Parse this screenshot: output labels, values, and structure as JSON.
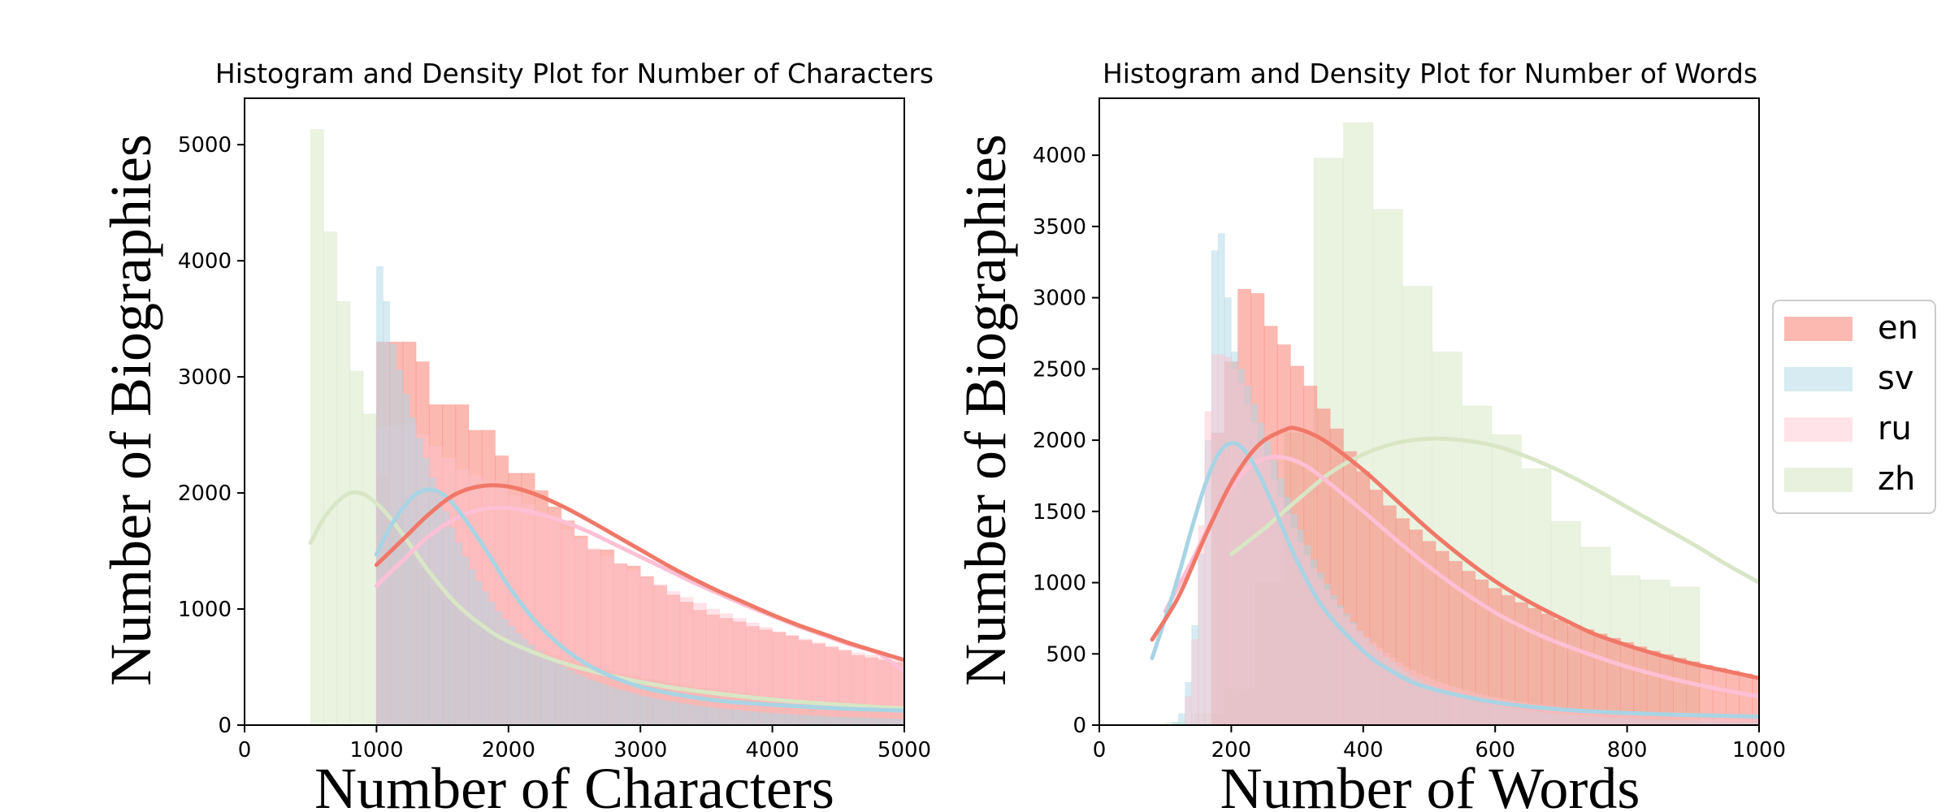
{
  "colors": {
    "en": "#fa8072",
    "sv": "#add8e6",
    "ru": "#ffc0cb",
    "zh": "#d9e7c6",
    "pink_en_overlay": "#ffb6c1"
  },
  "legend": {
    "placement": "right-center",
    "entries": [
      {
        "key": "en",
        "label": "en"
      },
      {
        "key": "sv",
        "label": "sv"
      },
      {
        "key": "ru",
        "label": "ru"
      },
      {
        "key": "zh",
        "label": "zh"
      }
    ]
  },
  "chart_data": [
    {
      "type": "bar",
      "title": "Histogram and Density Plot for Number of Characters",
      "xlabel": "Number of Characters",
      "ylabel": "Number of Biographies",
      "xlim": [
        0,
        5000
      ],
      "ylim": [
        0,
        5400
      ],
      "xticks": [
        0,
        1000,
        2000,
        3000,
        4000,
        5000
      ],
      "yticks": [
        0,
        1000,
        2000,
        3000,
        4000,
        5000
      ],
      "grid": false,
      "histograms": [
        {
          "name": "zh",
          "start": 500,
          "bin_width": 100,
          "values": [
            5130,
            4250,
            3650,
            3050,
            2680,
            2150,
            1800,
            1550,
            1350,
            1200,
            1080,
            980,
            900,
            830,
            770,
            720,
            680,
            640,
            600,
            560,
            530,
            500,
            470,
            440,
            420,
            400,
            380,
            360,
            340,
            320,
            305,
            290,
            275,
            260,
            248,
            236,
            224,
            212,
            200,
            190,
            180,
            172,
            165,
            158,
            150
          ]
        },
        {
          "name": "en",
          "start": 1000,
          "bin_width": 100,
          "values": [
            3300,
            3300,
            3300,
            3130,
            2760,
            2760,
            2760,
            2540,
            2540,
            2320,
            2170,
            2170,
            2020,
            1880,
            1760,
            1630,
            1510,
            1510,
            1390,
            1370,
            1280,
            1200,
            1120,
            1060,
            990,
            950,
            920,
            890,
            850,
            820,
            800,
            770,
            730,
            700,
            670,
            640,
            600,
            580,
            560,
            540
          ]
        },
        {
          "name": "ru",
          "start": 1000,
          "bin_width": 100,
          "values": [
            2580,
            2580,
            2600,
            2500,
            2400,
            2300,
            2200,
            2150,
            2100,
            2050,
            1980,
            1900,
            1830,
            1760,
            1680,
            1600,
            1520,
            1450,
            1390,
            1330,
            1270,
            1210,
            1150,
            1100,
            1050,
            1000,
            960,
            920,
            880,
            840,
            800,
            770,
            740,
            710,
            680,
            650,
            620,
            600,
            580,
            560
          ]
        },
        {
          "name": "sv",
          "start": 1000,
          "bin_width": 50,
          "values": [
            3950,
            3650,
            3280,
            3060,
            2850,
            2650,
            2470,
            2300,
            2130,
            1980,
            1840,
            1700,
            1570,
            1450,
            1340,
            1240,
            1150,
            1060,
            980,
            910,
            850,
            790,
            740,
            690,
            640,
            600,
            560,
            530,
            500,
            470,
            440,
            415,
            390,
            370,
            350,
            330,
            310,
            295,
            280,
            265,
            250,
            238,
            226,
            215,
            205,
            195,
            185,
            176,
            168,
            160,
            153,
            146,
            140,
            134,
            128,
            123,
            118,
            113,
            108,
            104,
            100,
            96,
            92,
            88,
            85,
            82,
            79,
            76,
            73,
            70,
            68,
            66,
            64,
            62,
            60,
            58,
            56,
            54,
            52,
            50
          ]
        }
      ],
      "density": [
        {
          "name": "en",
          "x": [
            1000,
            1200,
            1400,
            1600,
            1800,
            2000,
            2200,
            2400,
            2600,
            2800,
            3000,
            3200,
            3400,
            3600,
            3800,
            4000,
            4200,
            4400,
            4600,
            4800,
            5000
          ],
          "y": [
            1380,
            1600,
            1820,
            1990,
            2060,
            2055,
            1990,
            1890,
            1770,
            1640,
            1510,
            1380,
            1260,
            1150,
            1050,
            950,
            860,
            780,
            700,
            630,
            560
          ]
        },
        {
          "name": "sv",
          "x": [
            1000,
            1100,
            1200,
            1300,
            1400,
            1500,
            1600,
            1800,
            2000,
            2200,
            2400,
            2600,
            2800,
            3000,
            3200,
            3400,
            3600,
            3800,
            4000,
            4200,
            4400,
            4600,
            4800,
            5000
          ],
          "y": [
            1470,
            1700,
            1870,
            1990,
            2030,
            1990,
            1880,
            1560,
            1200,
            900,
            680,
            520,
            410,
            330,
            280,
            240,
            210,
            190,
            175,
            162,
            150,
            140,
            132,
            125
          ]
        },
        {
          "name": "ru",
          "x": [
            1000,
            1200,
            1400,
            1600,
            1800,
            2000,
            2200,
            2400,
            2600,
            2800,
            3000,
            3200,
            3400,
            3600,
            3800,
            4000,
            4200,
            4400,
            4600,
            4800,
            5000
          ],
          "y": [
            1200,
            1420,
            1630,
            1780,
            1860,
            1870,
            1830,
            1760,
            1670,
            1560,
            1450,
            1340,
            1230,
            1130,
            1030,
            940,
            850,
            770,
            690,
            620,
            460
          ]
        },
        {
          "name": "zh",
          "x": [
            500,
            600,
            700,
            800,
            900,
            1000,
            1100,
            1200,
            1400,
            1600,
            1800,
            2000,
            2400,
            2800,
            3200,
            3600,
            4000,
            4400,
            4800,
            5000
          ],
          "y": [
            1570,
            1780,
            1920,
            2000,
            1990,
            1910,
            1790,
            1640,
            1320,
            1050,
            860,
            720,
            540,
            420,
            330,
            270,
            220,
            185,
            155,
            145
          ]
        }
      ]
    },
    {
      "type": "bar",
      "title": "Histogram and Density Plot for Number of Words",
      "xlabel": "Number of Words",
      "ylabel": "Number of Biographies",
      "xlim": [
        0,
        1000
      ],
      "ylim": [
        0,
        4400
      ],
      "xticks": [
        0,
        200,
        400,
        600,
        800,
        1000
      ],
      "yticks": [
        0,
        500,
        1000,
        1500,
        2000,
        2500,
        3000,
        3500,
        4000
      ],
      "grid": false,
      "histograms": [
        {
          "name": "zh",
          "start": 100,
          "bin_width": 45,
          "values": [
            20,
            80,
            250,
            1000,
            2050,
            3980,
            4230,
            3620,
            3080,
            2620,
            2240,
            2040,
            1800,
            1430,
            1250,
            1050,
            1020,
            970
          ]
        },
        {
          "name": "en",
          "start": 170,
          "bin_width": 20,
          "values": [
            2050,
            2550,
            3060,
            3030,
            2800,
            2670,
            2520,
            2380,
            2220,
            2080,
            1920,
            1780,
            1650,
            1540,
            1450,
            1370,
            1290,
            1220,
            1150,
            1080,
            1020,
            960,
            910,
            860,
            820,
            780,
            740,
            700,
            670,
            640,
            610,
            580,
            550,
            520,
            495,
            470,
            445,
            420,
            400,
            380,
            360,
            340
          ]
        },
        {
          "name": "sv",
          "start": 110,
          "bin_width": 10,
          "values": [
            20,
            80,
            300,
            700,
            1200,
            2000,
            3330,
            3450,
            3000,
            2620,
            2500,
            2380,
            2250,
            2120,
            1990,
            1860,
            1730,
            1600,
            1480,
            1370,
            1260,
            1160,
            1070,
            990,
            910,
            840,
            780,
            720,
            660,
            610,
            560,
            515,
            475,
            440,
            405,
            375,
            345,
            320,
            295,
            275,
            255,
            237,
            220,
            205,
            190,
            177,
            165,
            154,
            144,
            135,
            127,
            119,
            112,
            105,
            99,
            93,
            88,
            83,
            78,
            74,
            70,
            66,
            63,
            60,
            57,
            54,
            51,
            49,
            47,
            45,
            43,
            41,
            39,
            37,
            36,
            34,
            33,
            32,
            31,
            30,
            29,
            28,
            27,
            26,
            25,
            24,
            23,
            22,
            21
          ]
        },
        {
          "name": "ru",
          "start": 130,
          "bin_width": 10,
          "values": [
            200,
            600,
            1400,
            2200,
            2600,
            2600,
            2580,
            2500,
            2400,
            2250,
            2120,
            1980,
            1850,
            1720,
            1600,
            1480,
            1380,
            1280,
            1190,
            1100,
            1020,
            950,
            880,
            820,
            760,
            710,
            660,
            620,
            580,
            540,
            505,
            470,
            440,
            410,
            385,
            360,
            340,
            320,
            300,
            285,
            270,
            255,
            242,
            230,
            218,
            207,
            197,
            188,
            179,
            171,
            163,
            156,
            149,
            143,
            137,
            131,
            126,
            121,
            116,
            112,
            108,
            104,
            100,
            96,
            93,
            90,
            87,
            84,
            81,
            78,
            75,
            73,
            71,
            69,
            67,
            65,
            63,
            61,
            59,
            57,
            55,
            53,
            51,
            50,
            49,
            48,
            47
          ]
        }
      ],
      "density": [
        {
          "name": "en",
          "x": [
            80,
            120,
            160,
            200,
            240,
            280,
            300,
            340,
            400,
            450,
            500,
            550,
            600,
            650,
            700,
            750,
            800,
            850,
            900,
            950,
            1000
          ],
          "y": [
            600,
            900,
            1320,
            1700,
            1960,
            2070,
            2080,
            2000,
            1790,
            1580,
            1370,
            1180,
            1010,
            870,
            750,
            640,
            560,
            490,
            430,
            380,
            330
          ]
        },
        {
          "name": "sv",
          "x": [
            80,
            100,
            120,
            140,
            160,
            180,
            200,
            220,
            240,
            260,
            280,
            300,
            340,
            400,
            450,
            500,
            600,
            700,
            800,
            900,
            1000
          ],
          "y": [
            470,
            750,
            1050,
            1380,
            1680,
            1900,
            1980,
            1930,
            1780,
            1580,
            1360,
            1150,
            820,
            520,
            360,
            260,
            160,
            110,
            85,
            70,
            60
          ]
        },
        {
          "name": "ru",
          "x": [
            100,
            140,
            180,
            220,
            260,
            300,
            340,
            400,
            450,
            500,
            550,
            600,
            650,
            700,
            800,
            900,
            1000
          ],
          "y": [
            800,
            1150,
            1520,
            1780,
            1880,
            1850,
            1730,
            1500,
            1300,
            1110,
            940,
            790,
            670,
            570,
            410,
            290,
            200
          ]
        },
        {
          "name": "zh",
          "x": [
            200,
            250,
            300,
            350,
            400,
            450,
            500,
            550,
            600,
            650,
            700,
            750,
            800,
            850,
            900,
            950,
            1000
          ],
          "y": [
            1200,
            1380,
            1580,
            1770,
            1900,
            1980,
            2010,
            2000,
            1960,
            1880,
            1780,
            1660,
            1530,
            1400,
            1270,
            1130,
            1000
          ]
        }
      ]
    }
  ]
}
